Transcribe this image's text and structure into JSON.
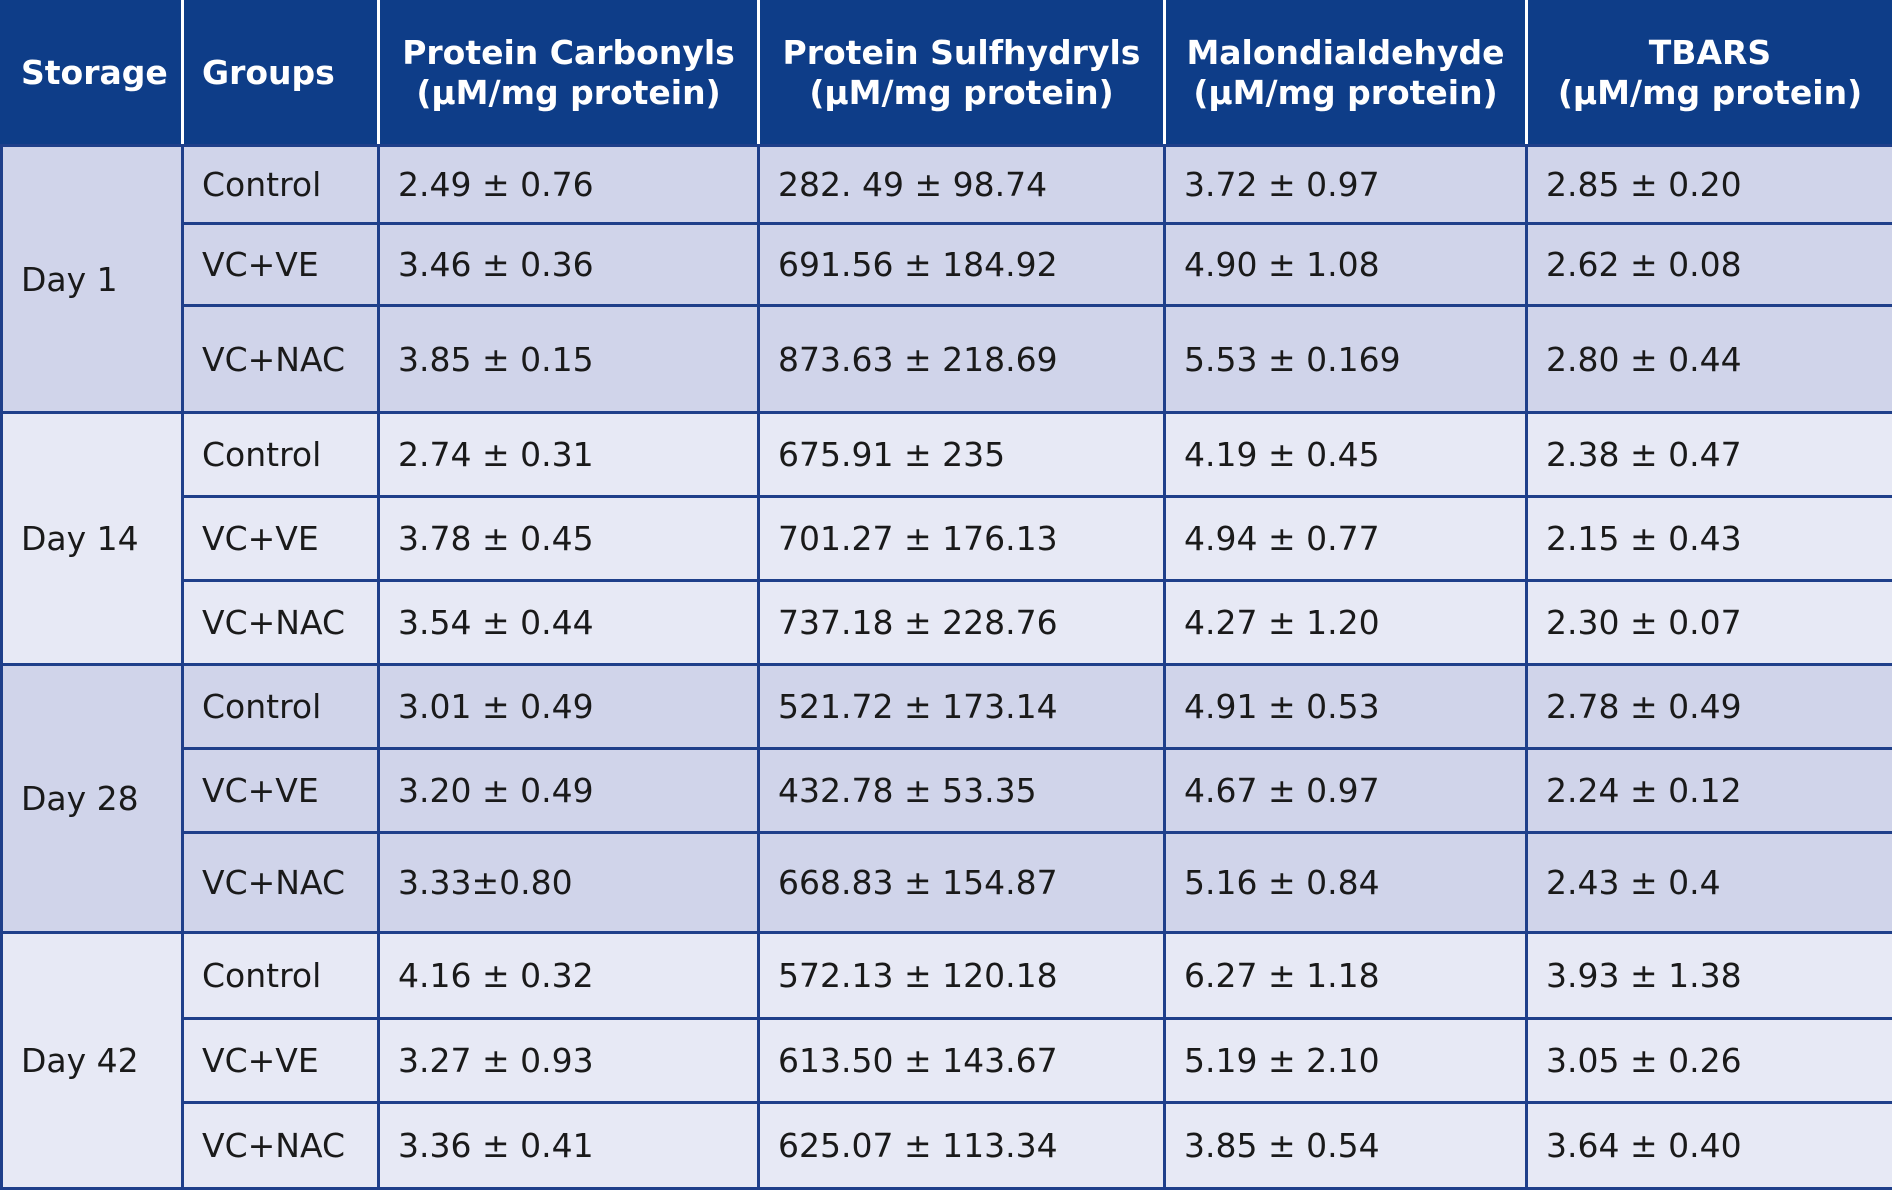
{
  "colors": {
    "header_bg": "#0e3d88",
    "header_text": "#ffffff",
    "border": "#1f3f8a",
    "band_dark": "#d0d4ea",
    "band_light": "#e7e9f5"
  },
  "table": {
    "headers": [
      {
        "line1": "Storage",
        "line2": ""
      },
      {
        "line1": "Groups",
        "line2": ""
      },
      {
        "line1": "Protein Carbonyls",
        "line2": "(µM/mg protein)"
      },
      {
        "line1": "Protein Sulfhydryls",
        "line2": "(µM/mg protein)"
      },
      {
        "line1": "Malondialdehyde",
        "line2": "(µM/mg protein)"
      },
      {
        "line1": "TBARS",
        "line2": "(µM/mg protein)"
      }
    ],
    "blocks": [
      {
        "storage": "Day 1",
        "rows": [
          {
            "group": "Control",
            "carbonyls": "2.49 ± 0.76",
            "sulfhydryls": "282. 49 ± 98.74",
            "mda": "3.72 ± 0.97",
            "tbars": "2.85 ± 0.20"
          },
          {
            "group": "VC+VE",
            "carbonyls": "3.46 ± 0.36",
            "sulfhydryls": "691.56 ± 184.92",
            "mda": "4.90 ± 1.08",
            "tbars": "2.62 ± 0.08"
          },
          {
            "group": "VC+NAC",
            "carbonyls": "3.85 ± 0.15",
            "sulfhydryls": "873.63 ± 218.69",
            "mda": "5.53 ± 0.169",
            "tbars": "2.80 ± 0.44"
          }
        ]
      },
      {
        "storage": "Day 14",
        "rows": [
          {
            "group": "Control",
            "carbonyls": "2.74 ± 0.31",
            "sulfhydryls": "675.91 ± 235",
            "mda": "4.19 ± 0.45",
            "tbars": "2.38 ± 0.47"
          },
          {
            "group": "VC+VE",
            "carbonyls": "3.78 ± 0.45",
            "sulfhydryls": "701.27 ± 176.13",
            "mda": "4.94 ± 0.77",
            "tbars": "2.15 ± 0.43"
          },
          {
            "group": "VC+NAC",
            "carbonyls": "3.54 ± 0.44",
            "sulfhydryls": "737.18 ± 228.76",
            "mda": "4.27 ± 1.20",
            "tbars": "2.30 ± 0.07"
          }
        ]
      },
      {
        "storage": "Day 28",
        "rows": [
          {
            "group": "Control",
            "carbonyls": "3.01 ± 0.49",
            "sulfhydryls": "521.72 ± 173.14",
            "mda": "4.91 ± 0.53",
            "tbars": "2.78 ± 0.49"
          },
          {
            "group": "VC+VE",
            "carbonyls": "3.20 ± 0.49",
            "sulfhydryls": "432.78 ± 53.35",
            "mda": "4.67 ± 0.97",
            "tbars": "2.24 ± 0.12"
          },
          {
            "group": "VC+NAC",
            "carbonyls": "3.33±0.80",
            "sulfhydryls": "668.83 ± 154.87",
            "mda": "5.16 ± 0.84",
            "tbars": "2.43 ± 0.4"
          }
        ]
      },
      {
        "storage": "Day 42",
        "rows": [
          {
            "group": "Control",
            "carbonyls": "4.16 ± 0.32",
            "sulfhydryls": "572.13 ± 120.18",
            "mda": "6.27 ± 1.18",
            "tbars": "3.93 ± 1.38"
          },
          {
            "group": "VC+VE",
            "carbonyls": "3.27 ± 0.93",
            "sulfhydryls": "613.50 ± 143.67",
            "mda": "5.19 ± 2.10",
            "tbars": "3.05 ± 0.26"
          },
          {
            "group": "VC+NAC",
            "carbonyls": "3.36 ± 0.41",
            "sulfhydryls": "625.07 ± 113.34",
            "mda": "3.85 ± 0.54",
            "tbars": "3.64 ± 0.40"
          }
        ]
      }
    ]
  }
}
